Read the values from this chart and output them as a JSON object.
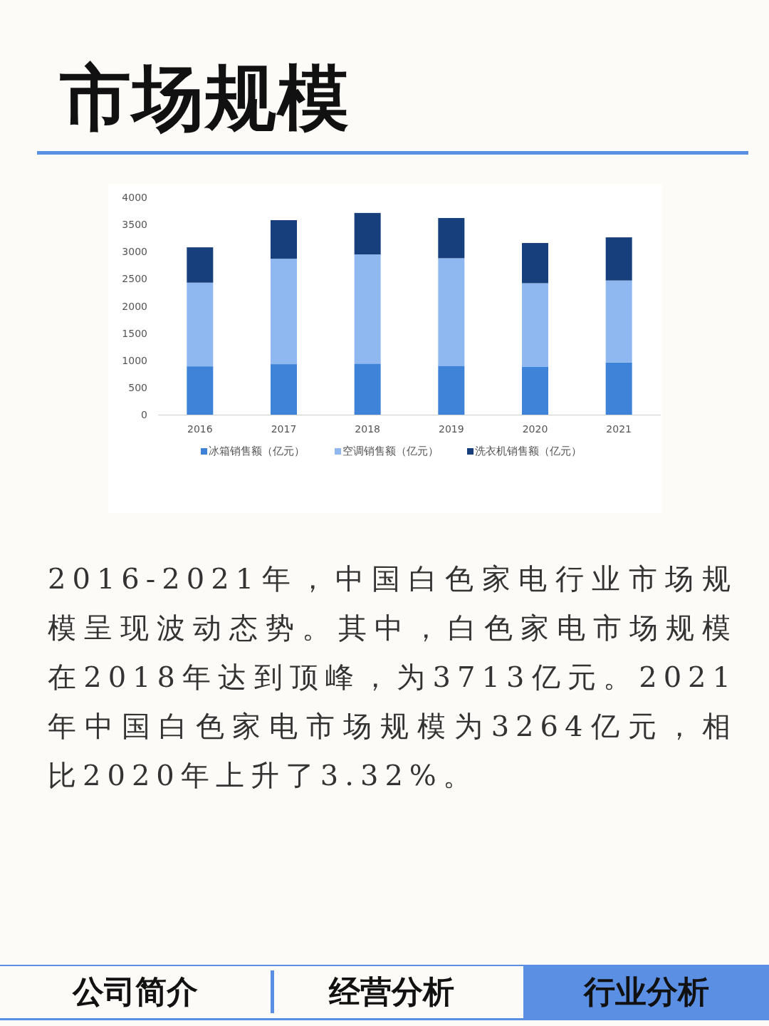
{
  "chart_data": {
    "type": "bar",
    "title": "市场规模",
    "stacked": true,
    "legend": "bottom",
    "categories": [
      "2016",
      "2017",
      "2018",
      "2019",
      "2020",
      "2021"
    ],
    "ylim": [
      0,
      4000
    ],
    "yticks": [
      0,
      500,
      1000,
      1500,
      2000,
      2500,
      3000,
      3500,
      4000
    ],
    "series": [
      {
        "name": "冰箱销售额（亿元）",
        "color": "#3f83d9",
        "values": [
          890,
          930,
          940,
          900,
          880,
          960
        ]
      },
      {
        "name": "空调销售额（亿元）",
        "color": "#8fb8f0",
        "values": [
          1540,
          1940,
          2010,
          1980,
          1540,
          1510
        ]
      },
      {
        "name": "洗衣机销售额（亿元）",
        "color": "#173f7c",
        "values": [
          650,
          710,
          763,
          740,
          740,
          794
        ]
      }
    ],
    "annotations": [
      "2016-2021年，中国白色家电行业市场规模呈现波动态势。其中，白色家电市场规模在2018年达到顶峰，为3713亿元。2021年中国白色家电市场规模为3264亿元，相比2020年上升了3.32%。",
      "公司简介",
      "经营分析",
      "行业分析"
    ]
  }
}
